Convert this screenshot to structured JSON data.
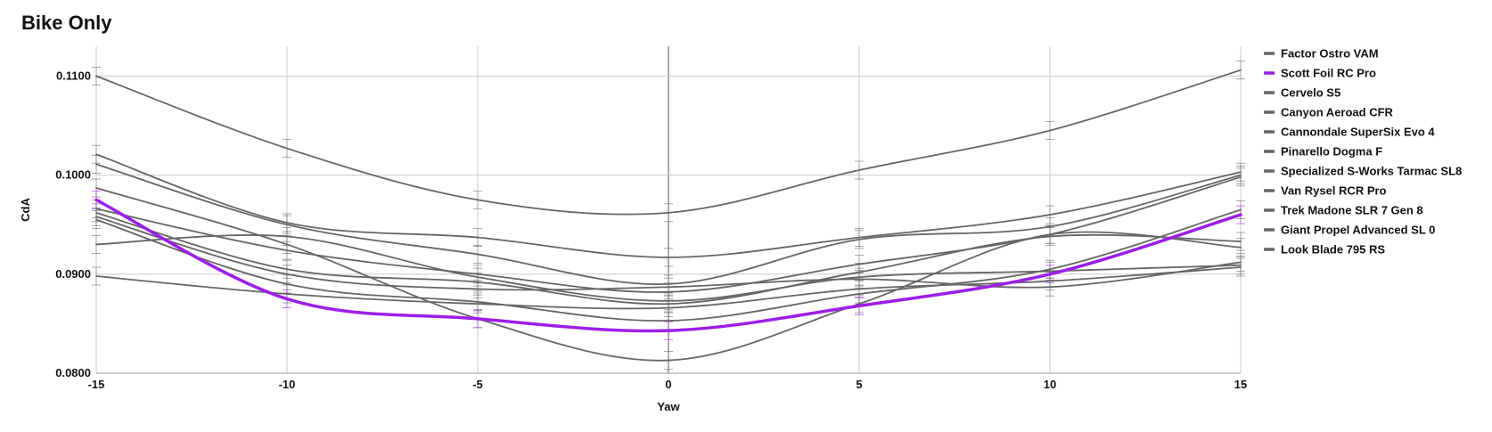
{
  "chart_data": {
    "type": "line",
    "title": "Bike Only",
    "xlabel": "Yaw",
    "ylabel": "CdA",
    "xlim": [
      -15,
      15
    ],
    "ylim": [
      0.08,
      0.113
    ],
    "x_ticks": [
      -15,
      -10,
      -5,
      0,
      5,
      10,
      15
    ],
    "x_tick_labels": [
      "-15",
      "-10",
      "-5",
      "0",
      "5",
      "10",
      "15"
    ],
    "y_ticks": [
      0.08,
      0.09,
      0.1,
      0.11
    ],
    "y_tick_labels": [
      "0.0800",
      "0.0900",
      "0.1000",
      "0.1100"
    ],
    "grid": true,
    "legend_position": "right",
    "highlight_color": "#9b1fe8",
    "base_color": "#666666",
    "x": [
      -15,
      -10,
      -5,
      0,
      5,
      10,
      15
    ],
    "series": [
      {
        "name": "Factor Ostro VAM",
        "values": [
          0.11,
          0.1027,
          0.0975,
          0.0962,
          0.1005,
          0.1045,
          0.1106
        ],
        "highlight": false
      },
      {
        "name": "Scott Foil RC Pro",
        "values": [
          0.0975,
          0.0875,
          0.0855,
          0.0843,
          0.0868,
          0.09,
          0.096
        ],
        "highlight": true
      },
      {
        "name": "Cervelo S5",
        "values": [
          0.1021,
          0.0952,
          0.0937,
          0.0917,
          0.0937,
          0.096,
          0.1003
        ],
        "highlight": false
      },
      {
        "name": "Canyon Aeroad CFR",
        "values": [
          0.1011,
          0.095,
          0.092,
          0.089,
          0.0935,
          0.0948,
          0.1
        ],
        "highlight": false
      },
      {
        "name": "Cannondale SuperSix Evo 4",
        "values": [
          0.0987,
          0.093,
          0.0855,
          0.0813,
          0.087,
          0.094,
          0.0927
        ],
        "highlight": false
      },
      {
        "name": "Pinarello Dogma F",
        "values": [
          0.0966,
          0.0924,
          0.09,
          0.0882,
          0.091,
          0.094,
          0.0998
        ],
        "highlight": false
      },
      {
        "name": "Specialized S-Works Tarmac SL8",
        "values": [
          0.093,
          0.0938,
          0.0897,
          0.0873,
          0.0897,
          0.0903,
          0.0909
        ],
        "highlight": false
      },
      {
        "name": "Van Rysel RCR Pro",
        "values": [
          0.0962,
          0.0905,
          0.0892,
          0.087,
          0.0902,
          0.0938,
          0.0933
        ],
        "highlight": false
      },
      {
        "name": "Trek Madone SLR 7 Gen 8",
        "values": [
          0.0958,
          0.09,
          0.0885,
          0.0887,
          0.0895,
          0.0887,
          0.0912
        ],
        "highlight": false
      },
      {
        "name": "Giant Propel Advanced SL 0",
        "values": [
          0.0955,
          0.089,
          0.0872,
          0.0853,
          0.088,
          0.0905,
          0.0965
        ],
        "highlight": false
      },
      {
        "name": "Look Blade 795 RS",
        "values": [
          0.0898,
          0.088,
          0.087,
          0.0866,
          0.0885,
          0.0893,
          0.0907
        ],
        "highlight": false
      }
    ]
  }
}
